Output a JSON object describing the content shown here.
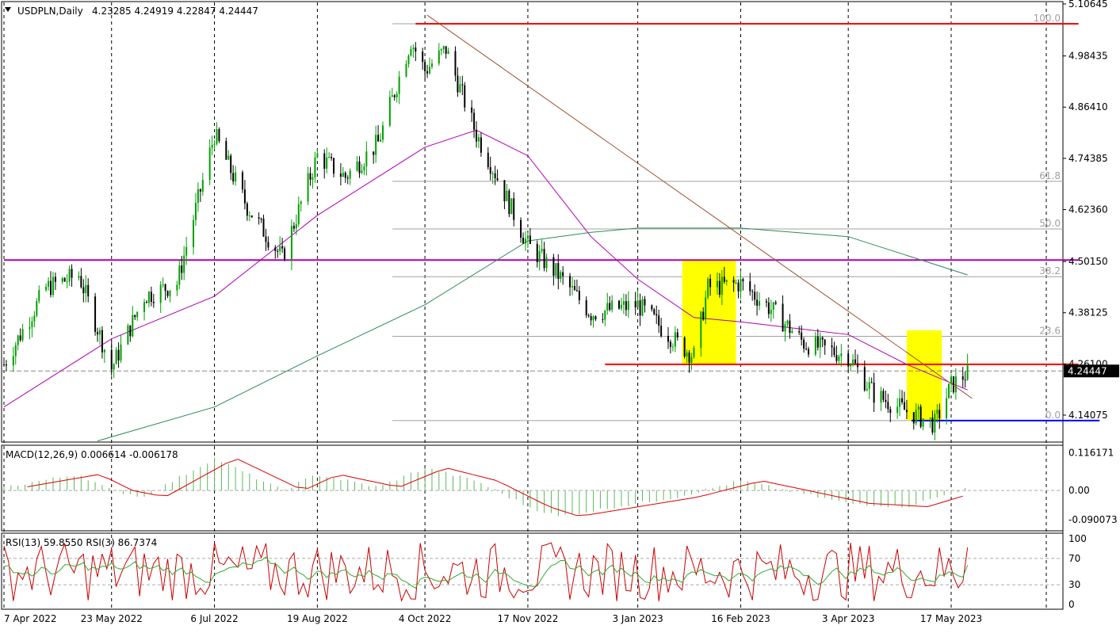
{
  "header": {
    "symbol": "USDPLN,Daily",
    "ohlc": "4.23285 4.24919 4.22847 4.24447"
  },
  "price_axis": {
    "ticks": [
      "5.10645",
      "4.98435",
      "4.86410",
      "4.74385",
      "4.62360",
      "4.50150",
      "4.38125",
      "4.26100",
      "4.14075"
    ],
    "current_price": "4.24447"
  },
  "fibonacci": {
    "levels": [
      "100.0",
      "61.8",
      "50.0",
      "38.2",
      "23.6",
      "0.0"
    ]
  },
  "macd": {
    "label": "MACD(12,26,9) 0.006614 -0.006178",
    "ticks": [
      "0.116171",
      "0.00",
      "-0.090073"
    ]
  },
  "rsi": {
    "label": "RSI(13) 59.8550  RSI(3) 86.7374",
    "ticks": [
      "100",
      "70",
      "30",
      "0"
    ]
  },
  "time_axis": {
    "labels": [
      "7 Apr 2022",
      "23 May 2022",
      "6 Jul 2022",
      "19 Aug 2022",
      "4 Oct 2022",
      "17 Nov 2022",
      "3 Jan 2023",
      "16 Feb 2023",
      "3 Apr 2023",
      "17 May 2023"
    ]
  },
  "colors": {
    "bull": "#00a000",
    "bear": "#000000",
    "ma50": "#b000b0",
    "ma200": "#2e8b57",
    "resistance": "#ff0000",
    "support": "#0000ff",
    "trendline": "#a0522d",
    "highlight": "#ffff00",
    "macd_hist": "#5cb85c",
    "macd_signal": "#dd0000",
    "rsi_fast": "#cc0000",
    "rsi_slow": "#33aa33"
  },
  "chart_data": {
    "type": "candlestick",
    "symbol": "USDPLN",
    "timeframe": "Daily",
    "price_range": [
      4.085,
      5.1065
    ],
    "close_path": [
      [
        "7 Apr 2022",
        4.26
      ],
      [
        "25 Apr 2022",
        4.44
      ],
      [
        "9 May 2022",
        4.47
      ],
      [
        "23 May 2022",
        4.25
      ],
      [
        "6 Jun 2022",
        4.42
      ],
      [
        "20 Jun 2022",
        4.45
      ],
      [
        "6 Jul 2022",
        4.8
      ],
      [
        "20 Jul 2022",
        4.63
      ],
      [
        "4 Aug 2022",
        4.51
      ],
      [
        "19 Aug 2022",
        4.75
      ],
      [
        "31 Aug 2022",
        4.7
      ],
      [
        "14 Sep 2022",
        4.78
      ],
      [
        "28 Sep 2022",
        5.02
      ],
      [
        "4 Oct 2022",
        4.95
      ],
      [
        "13 Oct 2022",
        5.0
      ],
      [
        "26 Oct 2022",
        4.8
      ],
      [
        "3 Nov 2022",
        4.71
      ],
      [
        "17 Nov 2022",
        4.54
      ],
      [
        "30 Nov 2022",
        4.47
      ],
      [
        "14 Dec 2022",
        4.38
      ],
      [
        "3 Jan 2023",
        4.4
      ],
      [
        "20 Jan 2023",
        4.31
      ],
      [
        "27 Jan 2023",
        4.28
      ],
      [
        "2 Feb 2023",
        4.44
      ],
      [
        "16 Feb 2023",
        4.45
      ],
      [
        "1 Mar 2023",
        4.39
      ],
      [
        "15 Mar 2023",
        4.31
      ],
      [
        "3 Apr 2023",
        4.28
      ],
      [
        "14 Apr 2023",
        4.19
      ],
      [
        "28 Apr 2023",
        4.15
      ],
      [
        "10 May 2023",
        4.12
      ],
      [
        "17 May 2023",
        4.21
      ],
      [
        "24 May 2023",
        4.24
      ]
    ],
    "ma_fast_path": [
      [
        "7 Apr 2022",
        4.16
      ],
      [
        "23 May 2022",
        4.32
      ],
      [
        "6 Jul 2022",
        4.42
      ],
      [
        "19 Aug 2022",
        4.61
      ],
      [
        "4 Oct 2022",
        4.77
      ],
      [
        "26 Oct 2022",
        4.81
      ],
      [
        "17 Nov 2022",
        4.75
      ],
      [
        "14 Dec 2022",
        4.56
      ],
      [
        "3 Jan 2023",
        4.46
      ],
      [
        "27 Jan 2023",
        4.37
      ],
      [
        "16 Feb 2023",
        4.36
      ],
      [
        "3 Apr 2023",
        4.33
      ],
      [
        "28 Apr 2023",
        4.26
      ],
      [
        "24 May 2023",
        4.2
      ]
    ],
    "ma_slow_path": [
      [
        "17 May 2022",
        4.08
      ],
      [
        "6 Jul 2022",
        4.16
      ],
      [
        "19 Aug 2022",
        4.28
      ],
      [
        "4 Oct 2022",
        4.4
      ],
      [
        "17 Nov 2022",
        4.55
      ],
      [
        "14 Dec 2022",
        4.57
      ],
      [
        "3 Jan 2023",
        4.58
      ],
      [
        "16 Feb 2023",
        4.58
      ],
      [
        "3 Apr 2023",
        4.56
      ],
      [
        "24 May 2023",
        4.47
      ]
    ],
    "horizontal_levels": [
      {
        "price": 5.06,
        "from": "30 Sep 2022",
        "to": "24 May 2023",
        "color": "resistance"
      },
      {
        "price": 4.505,
        "from": "7 Apr 2022",
        "to": "24 May 2023",
        "color": "ma50"
      },
      {
        "price": 4.26,
        "from": "20 Dec 2022",
        "to": "24 May 2023",
        "color": "resistance"
      },
      {
        "price": 4.128,
        "from": "30 Apr 2023",
        "to": "2 Jun 2023",
        "color": "support"
      }
    ],
    "fib_levels": [
      {
        "label": "100.0",
        "price": 5.06
      },
      {
        "label": "61.8",
        "price": 4.69
      },
      {
        "label": "50.0",
        "price": 4.578
      },
      {
        "label": "38.2",
        "price": 4.466
      },
      {
        "label": "23.6",
        "price": 4.326
      },
      {
        "label": "0.0",
        "price": 4.128
      }
    ],
    "highlight_boxes": [
      {
        "from": "22 Jan 2023",
        "to": "14 Feb 2023",
        "top": 4.505,
        "bottom": 4.26
      },
      {
        "from": "28 Apr 2023",
        "to": "13 May 2023",
        "top": 4.34,
        "bottom": 4.128
      }
    ],
    "trendline": {
      "from": [
        "5 Oct 2022",
        5.08
      ],
      "to": [
        "26 May 2023",
        4.18
      ]
    },
    "macd_path": [
      [
        "7 Apr 2022",
        0.01
      ],
      [
        "9 May 2022",
        0.05
      ],
      [
        "23 May 2022",
        0.0
      ],
      [
        "6 Jun 2022",
        -0.02
      ],
      [
        "6 Jul 2022",
        0.1
      ],
      [
        "4 Aug 2022",
        0.0
      ],
      [
        "19 Aug 2022",
        0.05
      ],
      [
        "14 Sep 2022",
        0.01
      ],
      [
        "4 Oct 2022",
        0.07
      ],
      [
        "26 Oct 2022",
        0.03
      ],
      [
        "17 Nov 2022",
        -0.05
      ],
      [
        "30 Nov 2022",
        -0.08
      ],
      [
        "3 Jan 2023",
        -0.04
      ],
      [
        "20 Jan 2023",
        -0.02
      ],
      [
        "16 Feb 2023",
        0.03
      ],
      [
        "3 Apr 2023",
        -0.04
      ],
      [
        "28 Apr 2023",
        -0.05
      ],
      [
        "24 May 2023",
        0.0066
      ]
    ],
    "macd_range": [
      -0.11,
      0.13
    ],
    "rsi_range": [
      0,
      100
    ]
  }
}
